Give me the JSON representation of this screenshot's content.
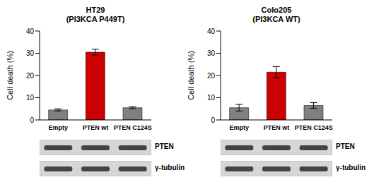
{
  "chart_data": [
    {
      "type": "bar",
      "title": "HT29",
      "subtitle": "(PI3KCA P449T)",
      "y_label": "Cell death (%)",
      "categories": [
        "Empty",
        "PTEN wt",
        "PTEN C124S"
      ],
      "values": [
        4.5,
        30.5,
        5.5
      ],
      "errors": [
        0.5,
        1.3,
        0.4
      ],
      "colors": [
        "#808080",
        "#cc0000",
        "#808080"
      ],
      "ylim": [
        0,
        40
      ],
      "yticks": [
        0,
        10,
        20,
        30,
        40
      ],
      "annotations": [
        "PTEN",
        "γ-tubulin"
      ]
    },
    {
      "type": "bar",
      "title": "Colo205",
      "subtitle": "(PI3KCA WT)",
      "y_label": "Cell death (%)",
      "categories": [
        "Empty",
        "PTEN wt",
        "PTEN C124S"
      ],
      "values": [
        5.5,
        21.5,
        6.5
      ],
      "errors": [
        1.5,
        2.5,
        1.3
      ],
      "colors": [
        "#808080",
        "#cc0000",
        "#808080"
      ],
      "ylim": [
        0,
        40
      ],
      "yticks": [
        0,
        10,
        20,
        30,
        40
      ],
      "annotations": [
        "PTEN",
        "γ-tubulin"
      ]
    }
  ]
}
